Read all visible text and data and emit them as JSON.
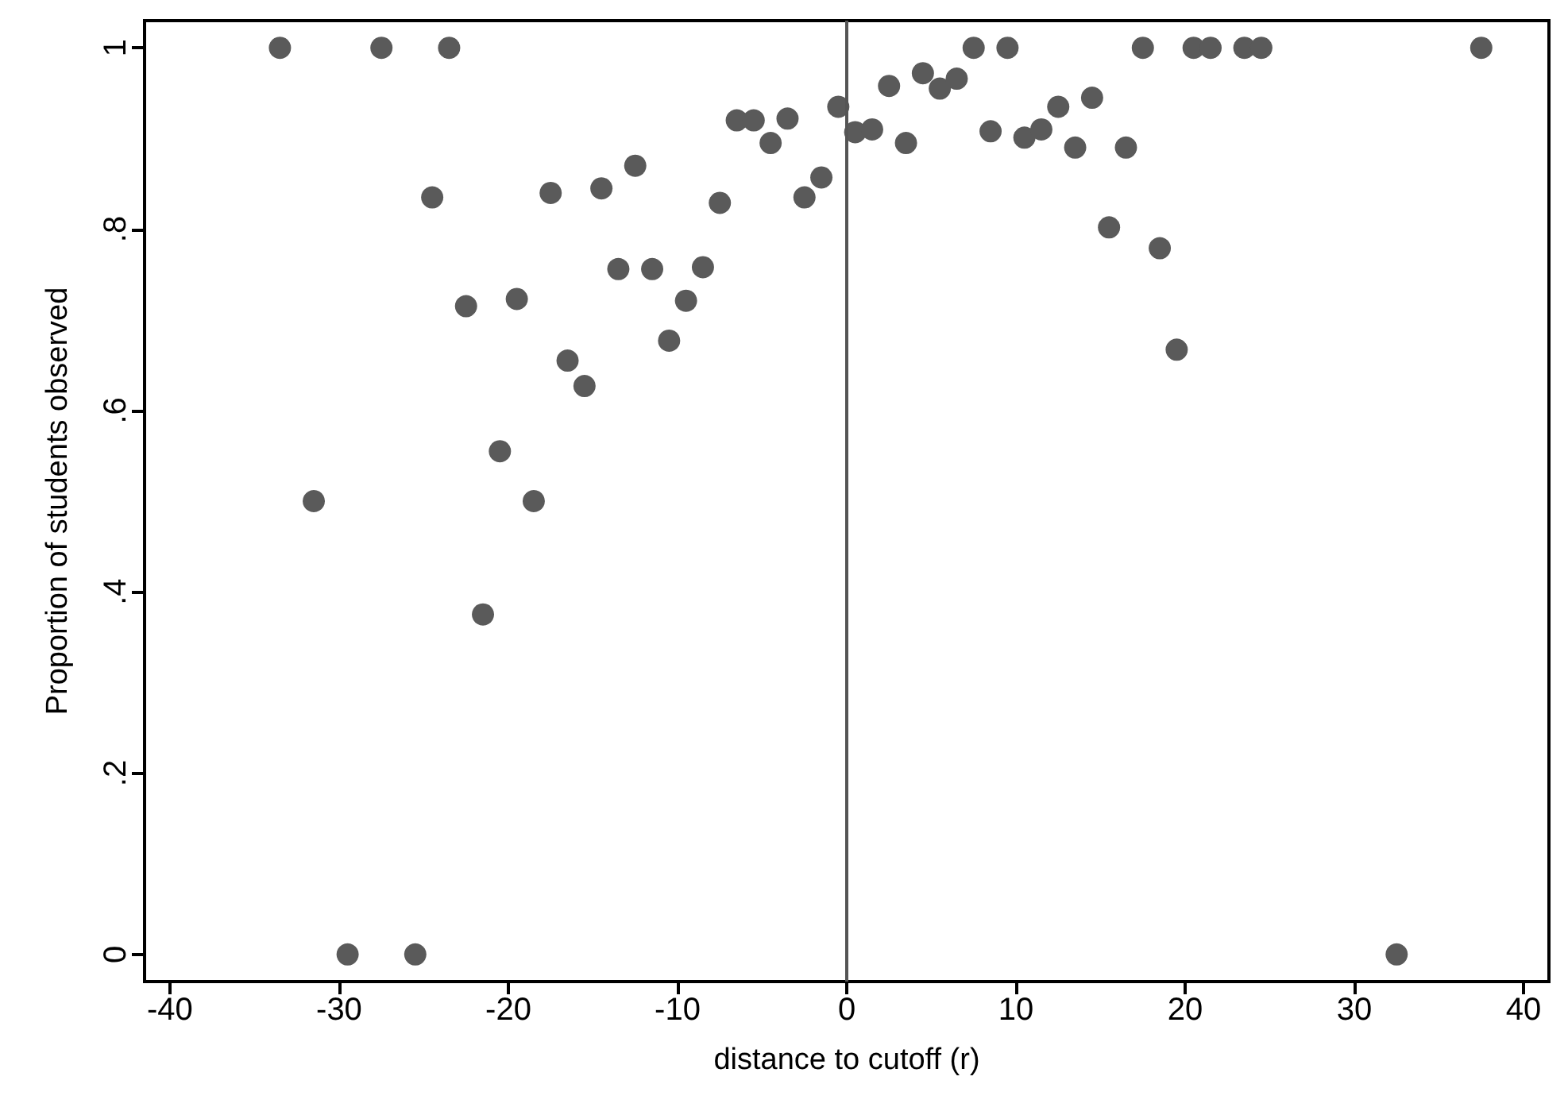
{
  "chart_data": {
    "type": "scatter",
    "xlabel": "distance to cutoff (r)",
    "ylabel": "Proportion of students observed",
    "xlim": [
      -41.5,
      41.5
    ],
    "ylim": [
      -0.03,
      1.03
    ],
    "xticks": [
      -40,
      -30,
      -20,
      -10,
      0,
      10,
      20,
      30,
      40
    ],
    "yticks": [
      0,
      {
        "value": 0.2,
        "label": ".2"
      },
      {
        "value": 0.4,
        "label": ".4"
      },
      {
        "value": 0.6,
        "label": ".6"
      },
      {
        "value": 0.8,
        "label": ".8"
      },
      1
    ],
    "grid": false,
    "marker": "circle",
    "ref_lines": [
      {
        "axis": "x",
        "value": 0,
        "color": "#555555"
      }
    ],
    "series": [
      {
        "color": "#5a5a5a",
        "x": [
          -33.5,
          -31.5,
          -29.5,
          -27.5,
          -25.5,
          -24.5,
          -23.5,
          -22.5,
          -21.5,
          -20.5,
          -19.5,
          -18.5,
          -17.5,
          -16.5,
          -15.5,
          -14.5,
          -13.5,
          -12.5,
          -11.5,
          -10.5,
          -9.5,
          -8.5,
          -7.5,
          -6.5,
          -5.5,
          -4.5,
          -3.5,
          -2.5,
          -1.5,
          -0.5,
          0.5,
          1.5,
          2.5,
          3.5,
          4.5,
          5.5,
          6.5,
          7.5,
          8.5,
          9.5,
          10.5,
          11.5,
          12.5,
          13.5,
          14.5,
          15.5,
          16.5,
          17.5,
          18.5,
          19.5,
          20.5,
          21.5,
          23.5,
          24.5,
          32.5,
          37.5
        ],
        "values": [
          1,
          0.5,
          0,
          1,
          0,
          0.835,
          1,
          0.715,
          0.375,
          0.555,
          0.723,
          0.5,
          0.84,
          0.655,
          0.627,
          0.845,
          0.756,
          0.87,
          0.756,
          0.677,
          0.721,
          0.758,
          0.829,
          0.92,
          0.92,
          0.895,
          0.922,
          0.835,
          0.857,
          0.935,
          0.907,
          0.91,
          0.958,
          0.895,
          0.972,
          0.955,
          0.966,
          1,
          0.908,
          1,
          0.901,
          0.91,
          0.935,
          0.89,
          0.945,
          0.802,
          0.89,
          1,
          0.779,
          0.667,
          1,
          1,
          1,
          1,
          0,
          1
        ]
      }
    ]
  }
}
